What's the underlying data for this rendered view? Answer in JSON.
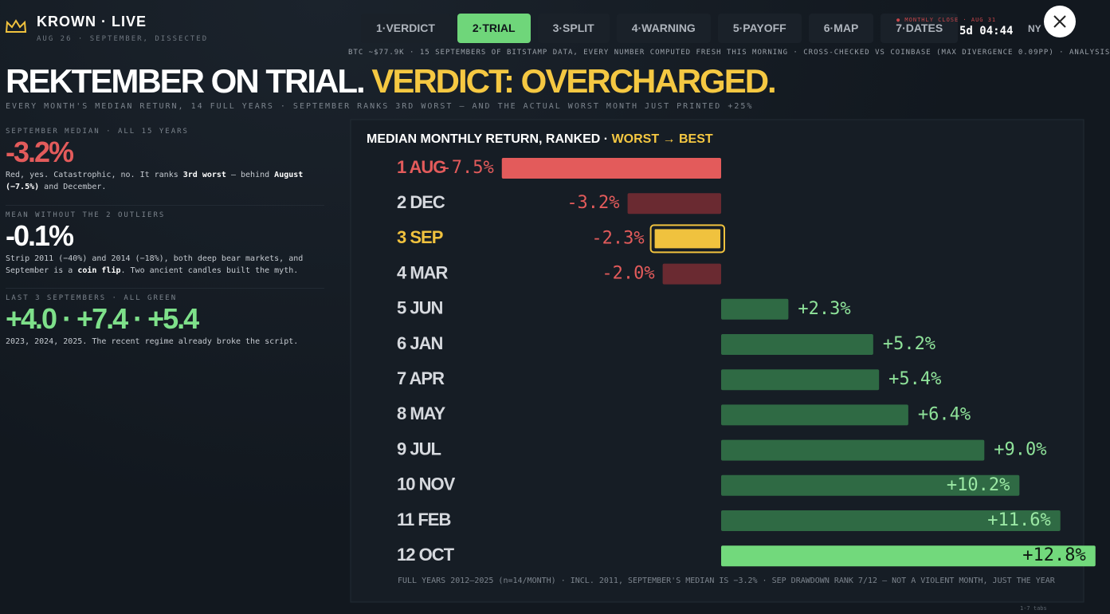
{
  "header": {
    "brand": "KROWN · LIVE",
    "subtitle": "AUG 26 · SEPTEMBER, DISSECTED",
    "tabs": [
      {
        "label": "1·VERDICT",
        "active": false
      },
      {
        "label": "2·TRIAL",
        "active": true
      },
      {
        "label": "3·SPLIT",
        "active": false
      },
      {
        "label": "4·WARNING",
        "active": false
      },
      {
        "label": "5·PAYOFF",
        "active": false
      },
      {
        "label": "6·MAP",
        "active": false
      },
      {
        "label": "7·DATES",
        "active": false
      }
    ],
    "countdown_label": "● MONTHLY CLOSE · AUG 31",
    "countdown": "5d 04:44",
    "timezone": "NY",
    "ticker": "BTC ~$77.9K · 15 SEPTEMBERS OF BITSTAMP DATA, EVERY NUMBER COMPUTED FRESH THIS MORNING · CROSS-CHECKED VS COINBASE (MAX DIVERGENCE 0.09PP) · ANALYSIS"
  },
  "headline": {
    "text": "REKTEMBER ON TRIAL.",
    "accent": "VERDICT: OVERCHARGED.",
    "subline": "EVERY MONTH'S MEDIAN RETURN, 14 FULL YEARS · SEPTEMBER RANKS 3RD WORST — AND THE ACTUAL WORST MONTH JUST PRINTED +25%"
  },
  "stats": [
    {
      "label": "SEPTEMBER MEDIAN · ALL 15 YEARS",
      "value": "-3.2%",
      "color": "#e35b5b",
      "note": [
        "Red, yes. Catastrophic, no. It ranks ",
        "3rd worst",
        " — behind ",
        "August (−7.5%)",
        " and December."
      ]
    },
    {
      "label": "MEAN WITHOUT THE 2 OUTLIERS",
      "value": "-0.1%",
      "color": "#ffffff",
      "note": [
        "Strip 2011 (−40%) and 2014 (−18%), both deep bear markets, and September is a ",
        "coin flip",
        ". Two ancient candles built the myth."
      ]
    },
    {
      "label": "LAST 3 SEPTEMBERS · ALL GREEN",
      "value": "+4.0 · +7.4 · +5.4",
      "color": "#7ee08a",
      "note": [
        "2023, 2024, 2025. The recent regime already broke the script."
      ]
    }
  ],
  "chart_data": {
    "type": "hbar",
    "title": "MEDIAN MONTHLY RETURN, RANKED · ",
    "title_accent": "WORST → BEST",
    "categories": [
      "1 AUG",
      "2 DEC",
      "3 SEP",
      "4 MAR",
      "5 JUN",
      "6 JAN",
      "7 APR",
      "8 MAY",
      "9 JUL",
      "10 NOV",
      "11 FEB",
      "12 OCT"
    ],
    "values": [
      -7.5,
      -3.2,
      -2.3,
      -2.0,
      2.3,
      5.2,
      5.4,
      6.4,
      9.0,
      10.2,
      11.6,
      12.8
    ],
    "value_labels": [
      "-7.5%",
      "-3.2%",
      "-2.3%",
      "-2.0%",
      "+2.3%",
      "+5.2%",
      "+5.4%",
      "+6.4%",
      "+9.0%",
      "+10.2%",
      "+11.6%",
      "+12.8%"
    ],
    "colors": [
      "#e35b5b",
      "#6a2a31",
      "#f0c23e",
      "#6a2a31",
      "#2f6a44",
      "#2f6a44",
      "#2f6a44",
      "#2f6a44",
      "#2f6a44",
      "#2f6a44",
      "#2f6a44",
      "#72d97c"
    ],
    "category_colors": [
      "#e35b5b",
      "#d6d9de",
      "#f0c23e",
      "#d6d9de",
      "#d6d9de",
      "#d6d9de",
      "#d6d9de",
      "#d6d9de",
      "#d6d9de",
      "#d6d9de",
      "#d6d9de",
      "#d6d9de"
    ],
    "footnote": "FULL YEARS 2012–2025 (n=14/MONTH) · INCL. 2011, SEPTEMBER'S MEDIAN IS −3.2% · SEP DRAWDOWN RANK 7/12 — NOT A VIOLENT MONTH, JUST THE YEAR"
  },
  "hint": "1-7 tabs"
}
